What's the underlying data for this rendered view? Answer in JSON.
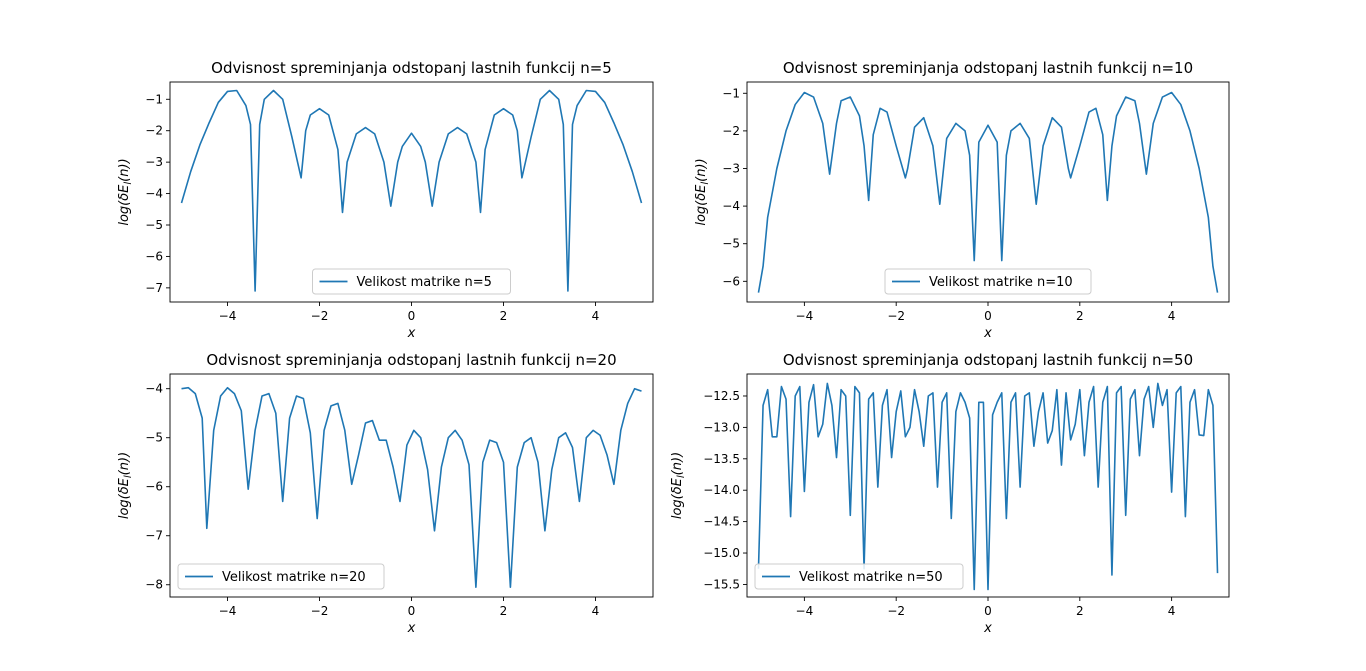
{
  "chart_data": [
    {
      "type": "line",
      "title": "Odvisnost spreminjanja odstopanj lastnih funkcij n=5",
      "xlabel": "x",
      "ylabel": "log(δE_l(n))",
      "xlim": [
        -5.25,
        5.25
      ],
      "ylim": [
        -7.45,
        -0.45
      ],
      "xticks": [
        -4,
        -2,
        0,
        2,
        4
      ],
      "yticks": [
        -7,
        -6,
        -5,
        -4,
        -3,
        -2,
        -1
      ],
      "grid": false,
      "legend_position": "lower center",
      "series": [
        {
          "name": "Velikost matrike n=5",
          "color": "#1f77b4",
          "x": [
            -5.0,
            -4.8,
            -4.6,
            -4.4,
            -4.2,
            -4.0,
            -3.8,
            -3.6,
            -3.5,
            -3.4,
            -3.3,
            -3.2,
            -3.0,
            -2.8,
            -2.6,
            -2.4,
            -2.3,
            -2.2,
            -2.0,
            -1.8,
            -1.6,
            -1.5,
            -1.4,
            -1.2,
            -1.0,
            -0.8,
            -0.6,
            -0.45,
            -0.3,
            -0.2,
            0.0,
            0.2,
            0.3,
            0.45,
            0.6,
            0.8,
            1.0,
            1.2,
            1.4,
            1.5,
            1.6,
            1.8,
            2.0,
            2.2,
            2.3,
            2.4,
            2.6,
            2.8,
            3.0,
            3.2,
            3.3,
            3.4,
            3.5,
            3.6,
            3.8,
            4.0,
            4.2,
            4.4,
            4.6,
            4.8,
            5.0
          ],
          "y": [
            -4.3,
            -3.3,
            -2.45,
            -1.75,
            -1.1,
            -0.75,
            -0.72,
            -1.2,
            -1.8,
            -7.1,
            -1.8,
            -1.0,
            -0.72,
            -1.0,
            -2.2,
            -3.5,
            -2.0,
            -1.5,
            -1.3,
            -1.5,
            -2.6,
            -4.6,
            -3.0,
            -2.1,
            -1.9,
            -2.1,
            -3.0,
            -4.4,
            -3.0,
            -2.5,
            -2.08,
            -2.5,
            -3.0,
            -4.4,
            -3.0,
            -2.1,
            -1.9,
            -2.1,
            -3.0,
            -4.6,
            -2.6,
            -1.5,
            -1.3,
            -1.5,
            -2.0,
            -3.5,
            -2.2,
            -1.0,
            -0.72,
            -1.0,
            -1.8,
            -7.1,
            -1.8,
            -1.2,
            -0.72,
            -0.75,
            -1.1,
            -1.75,
            -2.45,
            -3.3,
            -4.3
          ]
        }
      ]
    },
    {
      "type": "line",
      "title": "Odvisnost spreminjanja odstopanj lastnih funkcij n=10",
      "xlabel": "x",
      "ylabel": "log(δE_l(n))",
      "xlim": [
        -5.25,
        5.25
      ],
      "ylim": [
        -6.55,
        -0.7
      ],
      "xticks": [
        -4,
        -2,
        0,
        2,
        4
      ],
      "yticks": [
        -6,
        -5,
        -4,
        -3,
        -2,
        -1
      ],
      "grid": false,
      "legend_position": "lower center",
      "series": [
        {
          "name": "Velikost matrike n=10",
          "color": "#1f77b4",
          "x": [
            -5.0,
            -4.9,
            -4.8,
            -4.6,
            -4.4,
            -4.2,
            -4.0,
            -3.8,
            -3.6,
            -3.45,
            -3.3,
            -3.2,
            -3.0,
            -2.8,
            -2.7,
            -2.6,
            -2.5,
            -2.35,
            -2.2,
            -2.0,
            -1.8,
            -1.75,
            -1.6,
            -1.4,
            -1.2,
            -1.05,
            -0.9,
            -0.7,
            -0.5,
            -0.4,
            -0.3,
            -0.2,
            0.0,
            0.2,
            0.3,
            0.4,
            0.5,
            0.7,
            0.9,
            1.05,
            1.2,
            1.4,
            1.6,
            1.75,
            1.8,
            2.0,
            2.2,
            2.35,
            2.5,
            2.6,
            2.7,
            2.8,
            3.0,
            3.2,
            3.3,
            3.45,
            3.6,
            3.8,
            4.0,
            4.2,
            4.4,
            4.6,
            4.8,
            4.9,
            5.0
          ],
          "y": [
            -6.3,
            -5.6,
            -4.3,
            -3.0,
            -2.0,
            -1.3,
            -0.98,
            -1.1,
            -1.8,
            -3.15,
            -1.8,
            -1.2,
            -1.1,
            -1.6,
            -2.4,
            -3.85,
            -2.1,
            -1.4,
            -1.5,
            -2.4,
            -3.25,
            -3.0,
            -1.9,
            -1.65,
            -2.4,
            -3.95,
            -2.2,
            -1.8,
            -2.0,
            -2.65,
            -5.45,
            -2.3,
            -1.85,
            -2.3,
            -5.45,
            -2.65,
            -2.0,
            -1.8,
            -2.2,
            -3.95,
            -2.4,
            -1.65,
            -1.9,
            -3.0,
            -3.25,
            -2.4,
            -1.5,
            -1.4,
            -2.1,
            -3.85,
            -2.4,
            -1.6,
            -1.1,
            -1.2,
            -1.8,
            -3.15,
            -1.8,
            -1.1,
            -0.98,
            -1.3,
            -2.0,
            -3.0,
            -4.3,
            -5.6,
            -6.3
          ]
        }
      ]
    },
    {
      "type": "line",
      "title": "Odvisnost spreminjanja odstopanj lastnih funkcij n=20",
      "xlabel": "x",
      "ylabel": "log(δE_l(n))",
      "xlim": [
        -5.25,
        5.25
      ],
      "ylim": [
        -8.25,
        -3.7
      ],
      "xticks": [
        -4,
        -2,
        0,
        2,
        4
      ],
      "yticks": [
        -8,
        -7,
        -6,
        -5,
        -4
      ],
      "grid": false,
      "legend_position": "lower left",
      "series": [
        {
          "name": "Velikost matrike n=20",
          "color": "#1f77b4",
          "x": [
            -5.0,
            -4.85,
            -4.7,
            -4.55,
            -4.45,
            -4.3,
            -4.15,
            -4.0,
            -3.85,
            -3.7,
            -3.55,
            -3.4,
            -3.25,
            -3.1,
            -2.95,
            -2.8,
            -2.65,
            -2.5,
            -2.35,
            -2.2,
            -2.05,
            -1.9,
            -1.75,
            -1.6,
            -1.45,
            -1.3,
            -1.15,
            -1.0,
            -0.85,
            -0.7,
            -0.55,
            -0.4,
            -0.25,
            -0.1,
            0.05,
            0.2,
            0.35,
            0.5,
            0.65,
            0.8,
            0.95,
            1.1,
            1.25,
            1.4,
            1.55,
            1.7,
            1.85,
            2.0,
            2.15,
            2.3,
            2.45,
            2.6,
            2.75,
            2.9,
            3.05,
            3.2,
            3.35,
            3.5,
            3.65,
            3.8,
            3.95,
            4.1,
            4.25,
            4.4,
            4.55,
            4.7,
            4.85,
            5.0
          ],
          "y": [
            -4.0,
            -3.98,
            -4.1,
            -4.6,
            -6.85,
            -4.85,
            -4.15,
            -3.98,
            -4.1,
            -4.45,
            -6.05,
            -4.85,
            -4.15,
            -4.1,
            -4.5,
            -6.3,
            -4.6,
            -4.15,
            -4.2,
            -4.9,
            -6.65,
            -4.85,
            -4.35,
            -4.3,
            -4.85,
            -5.95,
            -5.35,
            -4.7,
            -4.65,
            -5.05,
            -5.05,
            -5.6,
            -6.3,
            -5.15,
            -4.85,
            -5.0,
            -5.65,
            -6.9,
            -5.6,
            -5.0,
            -4.85,
            -5.05,
            -5.55,
            -8.05,
            -5.5,
            -5.05,
            -5.1,
            -5.5,
            -8.05,
            -5.6,
            -5.1,
            -5.0,
            -5.5,
            -6.9,
            -5.65,
            -5.0,
            -4.9,
            -5.2,
            -6.3,
            -5.0,
            -4.85,
            -4.95,
            -5.35,
            -5.95,
            -4.85,
            -4.3,
            -4.0,
            -4.05
          ]
        }
      ]
    },
    {
      "type": "line",
      "title": "Odvisnost spreminjanja odstopanj lastnih funkcij n=50",
      "xlabel": "x",
      "ylabel": "log(δE_l(n))",
      "xlim": [
        -5.25,
        5.25
      ],
      "ylim": [
        -15.7,
        -12.15
      ],
      "xticks": [
        -4,
        -2,
        0,
        2,
        4
      ],
      "yticks": [
        -15.5,
        -15.0,
        -14.5,
        -14.0,
        -13.5,
        -13.0,
        -12.5
      ],
      "grid": false,
      "legend_position": "lower left",
      "series": [
        {
          "name": "Velikost matrike n=50",
          "color": "#1f77b4",
          "x": [
            -5.0,
            -4.9,
            -4.8,
            -4.7,
            -4.6,
            -4.5,
            -4.4,
            -4.3,
            -4.2,
            -4.1,
            -4.0,
            -3.9,
            -3.8,
            -3.7,
            -3.6,
            -3.5,
            -3.4,
            -3.3,
            -3.2,
            -3.1,
            -3.0,
            -2.9,
            -2.8,
            -2.7,
            -2.6,
            -2.5,
            -2.4,
            -2.3,
            -2.2,
            -2.1,
            -2.0,
            -1.9,
            -1.8,
            -1.7,
            -1.6,
            -1.5,
            -1.4,
            -1.3,
            -1.2,
            -1.1,
            -1.0,
            -0.9,
            -0.8,
            -0.7,
            -0.6,
            -0.5,
            -0.4,
            -0.3,
            -0.2,
            -0.1,
            0.0,
            0.1,
            0.2,
            0.3,
            0.4,
            0.5,
            0.6,
            0.7,
            0.8,
            0.9,
            1.0,
            1.1,
            1.2,
            1.3,
            1.4,
            1.5,
            1.6,
            1.7,
            1.8,
            1.9,
            2.0,
            2.1,
            2.2,
            2.3,
            2.4,
            2.5,
            2.6,
            2.7,
            2.8,
            2.9,
            3.0,
            3.1,
            3.2,
            3.3,
            3.4,
            3.5,
            3.6,
            3.7,
            3.8,
            3.9,
            4.0,
            4.1,
            4.2,
            4.3,
            4.4,
            4.5,
            4.6,
            4.7,
            4.8,
            4.9,
            5.0
          ],
          "y": [
            -15.25,
            -12.65,
            -12.4,
            -13.15,
            -13.15,
            -12.35,
            -12.55,
            -14.42,
            -12.5,
            -12.35,
            -14.02,
            -12.6,
            -12.32,
            -13.15,
            -12.95,
            -12.3,
            -12.65,
            -13.48,
            -12.4,
            -12.5,
            -14.4,
            -12.35,
            -12.45,
            -15.25,
            -12.55,
            -12.45,
            -13.95,
            -12.65,
            -12.4,
            -13.48,
            -12.75,
            -12.42,
            -13.15,
            -13.0,
            -12.4,
            -12.75,
            -13.3,
            -12.5,
            -12.45,
            -13.95,
            -12.6,
            -12.45,
            -14.45,
            -12.75,
            -12.45,
            -12.6,
            -12.85,
            -15.58,
            -12.6,
            -12.6,
            -15.58,
            -12.8,
            -12.6,
            -12.45,
            -14.45,
            -12.6,
            -12.45,
            -13.95,
            -12.5,
            -12.45,
            -13.3,
            -12.75,
            -12.45,
            -13.25,
            -13.05,
            -12.4,
            -13.6,
            -12.45,
            -13.2,
            -12.95,
            -12.4,
            -13.45,
            -12.6,
            -12.35,
            -13.95,
            -12.6,
            -12.35,
            -15.35,
            -12.45,
            -12.35,
            -14.4,
            -12.55,
            -12.4,
            -13.45,
            -12.55,
            -12.35,
            -13.0,
            -12.3,
            -12.65,
            -12.4,
            -14.03,
            -12.45,
            -12.35,
            -14.42,
            -12.6,
            -12.4,
            -13.12,
            -13.13,
            -12.4,
            -12.65,
            -15.32
          ]
        }
      ]
    }
  ]
}
